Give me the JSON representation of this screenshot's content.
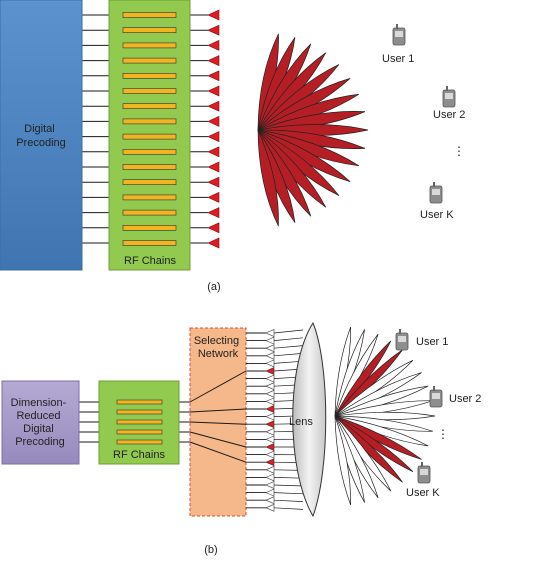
{
  "panel_a": {
    "caption": "(a)",
    "precoder_lines": [
      "Digital",
      "Precoding"
    ],
    "rf_label": "RF Chains",
    "users": [
      "User 1",
      "User 2",
      "User K"
    ],
    "ellipsis": "⋮"
  },
  "panel_b": {
    "caption": "(b)",
    "precoder_lines": [
      "Dimension-",
      "Reduced",
      "Digital",
      "Precoding"
    ],
    "rf_label": "RF Chains",
    "selecting_lines": [
      "Selecting",
      "Network"
    ],
    "lens_label": "Lens",
    "users": [
      "User 1",
      "User 2",
      "User K"
    ],
    "ellipsis": "⋮"
  },
  "colors": {
    "precoder_a": "#4f86c3",
    "precoder_b": "#a79cc9",
    "rf_green": "#92c94f",
    "rf_bar": "#f0b520",
    "selecting": "#f5b88a",
    "beam_red": "#b51e24",
    "antenna_red": "#e11b22",
    "lens_gray": "#e6e6e6"
  }
}
